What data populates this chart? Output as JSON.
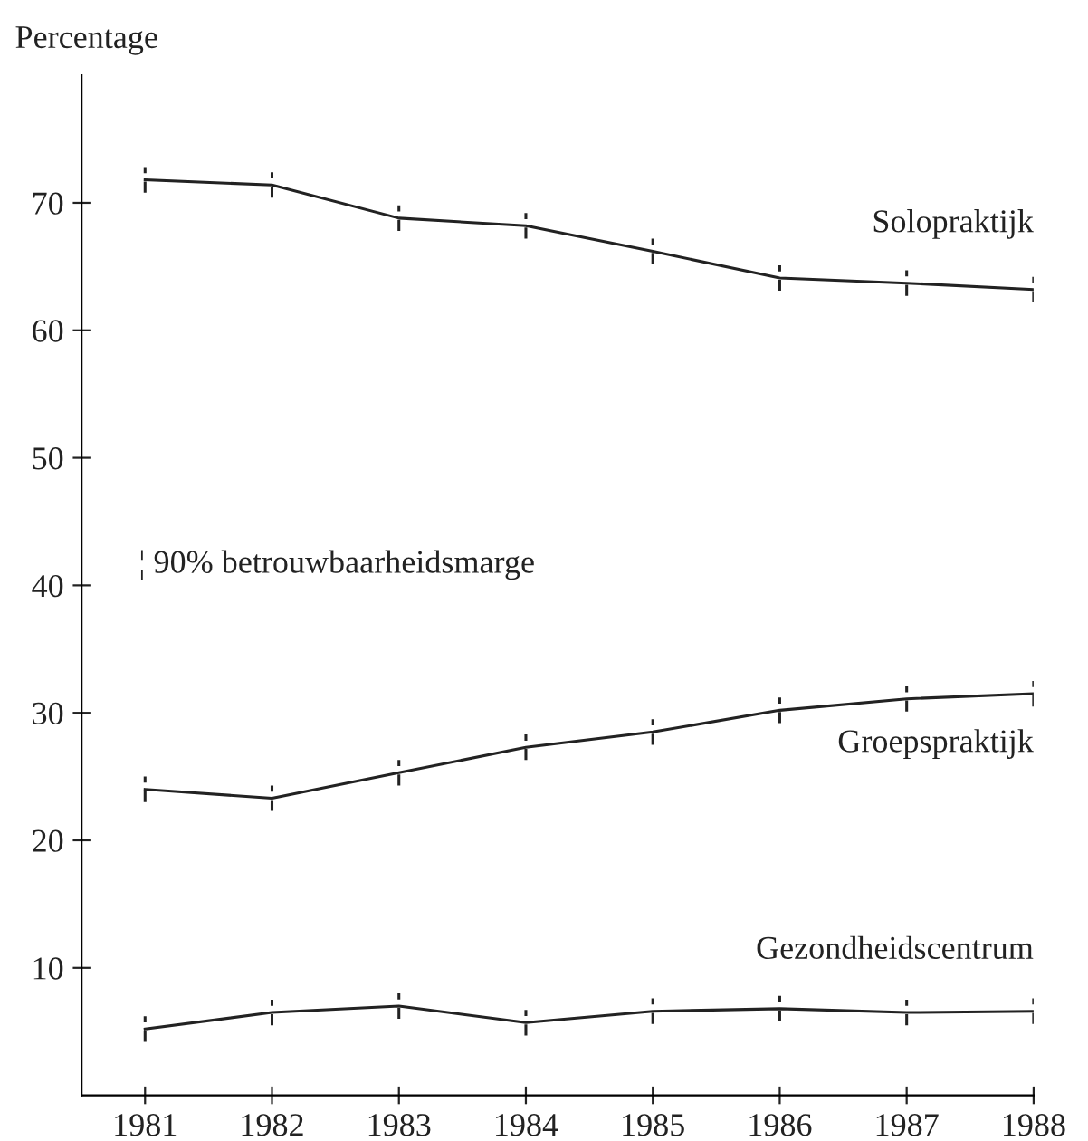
{
  "chart_data": {
    "type": "line",
    "ylabel": "Percentage",
    "x": [
      1981,
      1982,
      1983,
      1984,
      1985,
      1986,
      1987,
      1988
    ],
    "xlim": [
      1980.5,
      1988
    ],
    "xticks": [
      1981,
      1982,
      1983,
      1984,
      1985,
      1986,
      1987,
      1988
    ],
    "ylim": [
      0,
      80
    ],
    "yticks": [
      10,
      20,
      30,
      40,
      50,
      60,
      70
    ],
    "series": [
      {
        "name": "Solopraktijk",
        "color": "#222222",
        "values": [
          71.8,
          71.4,
          68.8,
          68.2,
          66.2,
          64.1,
          63.7,
          63.2
        ],
        "errors": [
          1,
          1,
          1,
          1,
          1,
          1,
          1,
          1
        ]
      },
      {
        "name": "Groepspraktijk",
        "color": "#222222",
        "values": [
          24.0,
          23.3,
          25.3,
          27.3,
          28.5,
          30.2,
          31.1,
          31.5
        ],
        "errors": [
          1,
          1,
          1,
          1,
          1,
          1,
          1,
          1
        ]
      },
      {
        "name": "Gezondheidscentrum",
        "color": "#222222",
        "values": [
          5.2,
          6.5,
          7.0,
          5.7,
          6.6,
          6.8,
          6.5,
          6.6
        ],
        "errors": [
          1,
          1,
          1,
          1,
          1,
          1,
          1,
          1
        ]
      }
    ],
    "annotations": [
      "¦ 90% betrouwbaarheidsmarge"
    ],
    "grid": false,
    "legend": false,
    "marker": "none",
    "line_style": "solid"
  }
}
